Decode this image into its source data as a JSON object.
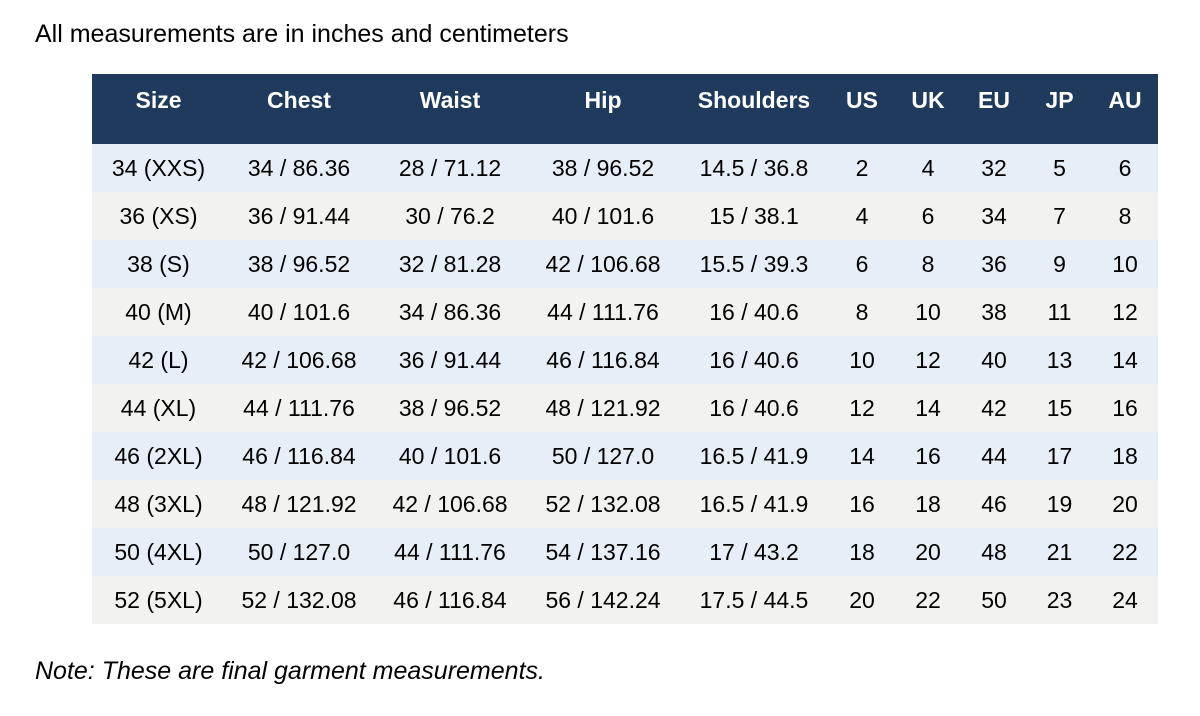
{
  "page_title": "All measurements are in inches and centimeters",
  "note": "Note: These are final garment measurements.",
  "colors": {
    "header_bg": "#1f3a5c",
    "header_text": "#ffffff",
    "row_alt_blue": "#e6eef8",
    "row_alt_gray": "#f2f3f1",
    "body_text": "#000000"
  },
  "table": {
    "columns": [
      "Size",
      "Chest",
      "Waist",
      "Hip",
      "Shoulders",
      "US",
      "UK",
      "EU",
      "JP",
      "AU"
    ],
    "rows": [
      [
        "34 (XXS)",
        "34 / 86.36",
        "28 / 71.12",
        "38 / 96.52",
        "14.5 / 36.8",
        "2",
        "4",
        "32",
        "5",
        "6"
      ],
      [
        "36 (XS)",
        "36 / 91.44",
        "30 / 76.2",
        "40 / 101.6",
        "15 / 38.1",
        "4",
        "6",
        "34",
        "7",
        "8"
      ],
      [
        "38 (S)",
        "38 / 96.52",
        "32 / 81.28",
        "42 / 106.68",
        "15.5 / 39.3",
        "6",
        "8",
        "36",
        "9",
        "10"
      ],
      [
        "40 (M)",
        "40 / 101.6",
        "34 / 86.36",
        "44 / 111.76",
        "16 / 40.6",
        "8",
        "10",
        "38",
        "11",
        "12"
      ],
      [
        "42 (L)",
        "42 / 106.68",
        "36 / 91.44",
        "46 / 116.84",
        "16 / 40.6",
        "10",
        "12",
        "40",
        "13",
        "14"
      ],
      [
        "44 (XL)",
        "44 / 111.76",
        "38 / 96.52",
        "48 / 121.92",
        "16 / 40.6",
        "12",
        "14",
        "42",
        "15",
        "16"
      ],
      [
        "46 (2XL)",
        "46 / 116.84",
        "40 / 101.6",
        "50 / 127.0",
        "16.5 / 41.9",
        "14",
        "16",
        "44",
        "17",
        "18"
      ],
      [
        "48 (3XL)",
        "48 / 121.92",
        "42 / 106.68",
        "52 / 132.08",
        "16.5 / 41.9",
        "16",
        "18",
        "46",
        "19",
        "20"
      ],
      [
        "50 (4XL)",
        "50 / 127.0",
        "44 / 111.76",
        "54 / 137.16",
        "17 / 43.2",
        "18",
        "20",
        "48",
        "21",
        "22"
      ],
      [
        "52 (5XL)",
        "52 / 132.08",
        "46 / 116.84",
        "56 / 142.24",
        "17.5 / 44.5",
        "20",
        "22",
        "50",
        "23",
        "24"
      ]
    ]
  }
}
